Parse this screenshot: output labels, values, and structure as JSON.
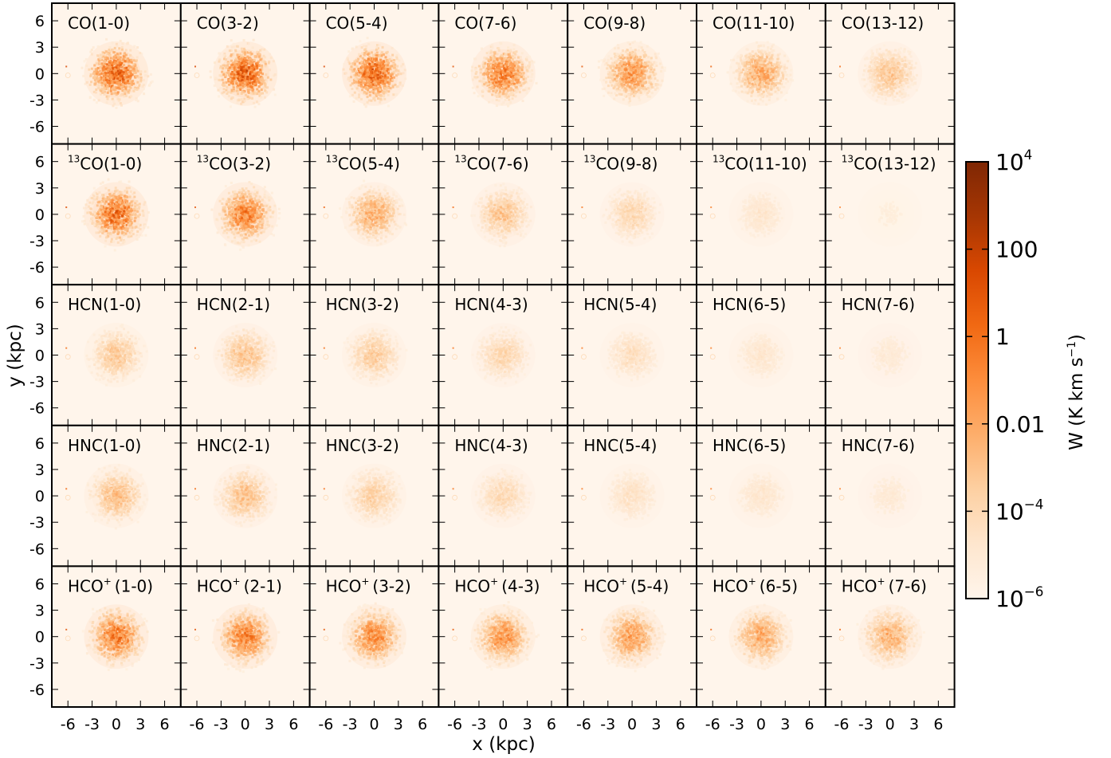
{
  "chart_data": {
    "type": "heatmap",
    "xlabel": "x (kpc)",
    "ylabel": "y (kpc)",
    "xlim": [
      -8,
      8
    ],
    "ylim": [
      -8,
      8
    ],
    "x_ticks": [
      "-6",
      "-3",
      "0",
      "3",
      "6"
    ],
    "y_ticks": [
      "6",
      "3",
      "0",
      "-3",
      "-6"
    ],
    "colorbar": {
      "label_main": "W (K km s",
      "label_sup": "−1",
      "label_end": ")",
      "scale": "log",
      "range": [
        1e-06,
        10000
      ],
      "ticks": [
        {
          "base": "10",
          "sup": "4",
          "value": 10000
        },
        {
          "base": "100",
          "sup": "",
          "value": 100
        },
        {
          "base": "1",
          "sup": "",
          "value": 1
        },
        {
          "base": "0.01",
          "sup": "",
          "value": 0.01
        },
        {
          "base": "10",
          "sup": "−4",
          "value": 0.0001
        },
        {
          "base": "10",
          "sup": "−6",
          "value": 1e-06
        }
      ],
      "colors": [
        "#fff5eb",
        "#fee6ce",
        "#fdd0a2",
        "#fdae6b",
        "#fd8d3c",
        "#f16913",
        "#d94801",
        "#a63603",
        "#7f2704"
      ]
    },
    "rows": [
      {
        "species": "CO",
        "pre": "",
        "pre_sup": "",
        "sup": "",
        "gap": false,
        "transitions": [
          "1-0",
          "3-2",
          "5-4",
          "7-6",
          "9-8",
          "11-10",
          "13-12"
        ],
        "peak_intensity": [
          0.85,
          0.85,
          0.82,
          0.72,
          0.62,
          0.52,
          0.38
        ]
      },
      {
        "species": "CO",
        "pre": "",
        "pre_sup": "13",
        "sup": "",
        "gap": false,
        "transitions": [
          "1-0",
          "3-2",
          "5-4",
          "7-6",
          "9-8",
          "11-10",
          "13-12"
        ],
        "peak_intensity": [
          0.8,
          0.7,
          0.5,
          0.38,
          0.28,
          0.16,
          0.08
        ]
      },
      {
        "species": "HCN",
        "pre": "",
        "pre_sup": "",
        "sup": "",
        "gap": false,
        "transitions": [
          "1-0",
          "2-1",
          "3-2",
          "4-3",
          "5-4",
          "6-5",
          "7-6"
        ],
        "peak_intensity": [
          0.36,
          0.4,
          0.34,
          0.28,
          0.22,
          0.16,
          0.12
        ]
      },
      {
        "species": "HNC",
        "pre": "",
        "pre_sup": "",
        "sup": "",
        "gap": false,
        "transitions": [
          "1-0",
          "2-1",
          "3-2",
          "4-3",
          "5-4",
          "6-5",
          "7-6"
        ],
        "peak_intensity": [
          0.42,
          0.4,
          0.32,
          0.26,
          0.2,
          0.16,
          0.12
        ]
      },
      {
        "species": "HCO",
        "pre": "",
        "pre_sup": "",
        "sup": "+",
        "gap": true,
        "transitions": [
          "1-0",
          "2-1",
          "3-2",
          "4-3",
          "5-4",
          "6-5",
          "7-6"
        ],
        "peak_intensity": [
          0.72,
          0.7,
          0.66,
          0.6,
          0.56,
          0.52,
          0.48
        ]
      }
    ]
  }
}
